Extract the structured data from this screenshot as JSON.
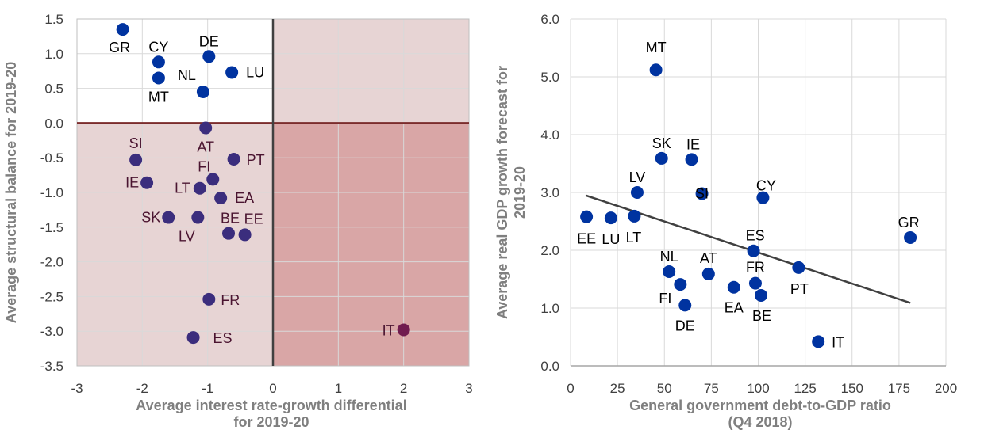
{
  "chart_data": [
    {
      "type": "scatter",
      "title": "",
      "xlabel": [
        "Average interest rate-growth differential",
        "for 2019-20"
      ],
      "ylabel": "Average structural balance for 2019-20",
      "xlim": [
        -3,
        3
      ],
      "ylim": [
        -3.5,
        1.5
      ],
      "xticks": [
        "-3",
        "-2",
        "-1",
        "0",
        "1",
        "2",
        "3"
      ],
      "yticks": [
        "1.5",
        "1.0",
        "0.5",
        "0.0",
        "-0.5",
        "-1.0",
        "-1.5",
        "-2.0",
        "-2.5",
        "-3.0",
        "-3.5"
      ],
      "grid": true,
      "legend": "none",
      "shaded_regions": [
        {
          "x": [
            -3,
            0
          ],
          "y": [
            -3.5,
            0
          ],
          "color": "#e7d4d4"
        },
        {
          "x": [
            0,
            3
          ],
          "y": [
            0,
            1.5
          ],
          "color": "#e7d4d4"
        },
        {
          "x": [
            0,
            3
          ],
          "y": [
            -3.5,
            0
          ],
          "color": "#d9a6a6"
        }
      ],
      "colors": {
        "positive_balance": "#0033a0",
        "negative_balance": "#3b2d7d",
        "both_unfavourable": "#701c4f",
        "axis_line": "#7b2c2c"
      },
      "points": [
        {
          "label": "GR",
          "x": -2.3,
          "y": 1.35
        },
        {
          "label": "CY",
          "x": -1.75,
          "y": 0.88
        },
        {
          "label": "MT",
          "x": -1.75,
          "y": 0.65
        },
        {
          "label": "DE",
          "x": -0.98,
          "y": 0.96
        },
        {
          "label": "LU",
          "x": -0.63,
          "y": 0.73
        },
        {
          "label": "NL",
          "x": -1.07,
          "y": 0.45
        },
        {
          "label": "AT",
          "x": -1.03,
          "y": -0.07
        },
        {
          "label": "SI",
          "x": -2.1,
          "y": -0.53
        },
        {
          "label": "PT",
          "x": -0.6,
          "y": -0.52
        },
        {
          "label": "FI",
          "x": -0.92,
          "y": -0.81
        },
        {
          "label": "IE",
          "x": -1.93,
          "y": -0.86
        },
        {
          "label": "LT",
          "x": -1.12,
          "y": -0.94
        },
        {
          "label": "EA",
          "x": -0.8,
          "y": -1.08
        },
        {
          "label": "SK",
          "x": -1.6,
          "y": -1.36
        },
        {
          "label": "LV",
          "x": -1.15,
          "y": -1.36
        },
        {
          "label": "BE",
          "x": -0.68,
          "y": -1.59
        },
        {
          "label": "EE",
          "x": -0.43,
          "y": -1.61
        },
        {
          "label": "FR",
          "x": -0.98,
          "y": -2.54
        },
        {
          "label": "ES",
          "x": -1.22,
          "y": -3.09
        },
        {
          "label": "IT",
          "x": 2.0,
          "y": -2.98
        }
      ]
    },
    {
      "type": "scatter",
      "title": "",
      "xlabel": [
        "General government debt-to-GDP ratio",
        "(Q4 2018)"
      ],
      "ylabel": [
        "Average real GDP growth forecast for",
        "2019-20"
      ],
      "xlim": [
        0,
        200
      ],
      "ylim": [
        0,
        6
      ],
      "xticks": [
        "0",
        "25",
        "50",
        "75",
        "100",
        "125",
        "150",
        "175",
        "200"
      ],
      "yticks": [
        "6.0",
        "5.0",
        "4.0",
        "3.0",
        "2.0",
        "1.0",
        "0.0"
      ],
      "grid": true,
      "legend": "none",
      "colors": {
        "points": "#0033a0",
        "trendline": "#404040"
      },
      "trendline": {
        "x": [
          8,
          181
        ],
        "y": [
          2.95,
          1.09
        ]
      },
      "points": [
        {
          "label": "MT",
          "x": 45.5,
          "y": 5.12
        },
        {
          "label": "SK",
          "x": 48.5,
          "y": 3.59
        },
        {
          "label": "IE",
          "x": 64.5,
          "y": 3.57
        },
        {
          "label": "LV",
          "x": 35.5,
          "y": 3.0
        },
        {
          "label": "SI",
          "x": 70.0,
          "y": 2.98
        },
        {
          "label": "CY",
          "x": 102.5,
          "y": 2.91
        },
        {
          "label": "EE",
          "x": 8.5,
          "y": 2.58
        },
        {
          "label": "LU",
          "x": 21.5,
          "y": 2.56
        },
        {
          "label": "LT",
          "x": 34.0,
          "y": 2.59
        },
        {
          "label": "GR",
          "x": 181.0,
          "y": 2.22
        },
        {
          "label": "ES",
          "x": 97.5,
          "y": 1.99
        },
        {
          "label": "PT",
          "x": 121.5,
          "y": 1.7
        },
        {
          "label": "NL",
          "x": 52.5,
          "y": 1.63
        },
        {
          "label": "AT",
          "x": 73.5,
          "y": 1.59
        },
        {
          "label": "FI",
          "x": 58.5,
          "y": 1.41
        },
        {
          "label": "FR",
          "x": 98.5,
          "y": 1.43
        },
        {
          "label": "EA",
          "x": 87.0,
          "y": 1.36
        },
        {
          "label": "BE",
          "x": 101.5,
          "y": 1.22
        },
        {
          "label": "DE",
          "x": 61.0,
          "y": 1.05
        },
        {
          "label": "IT",
          "x": 132.0,
          "y": 0.42
        }
      ]
    }
  ]
}
